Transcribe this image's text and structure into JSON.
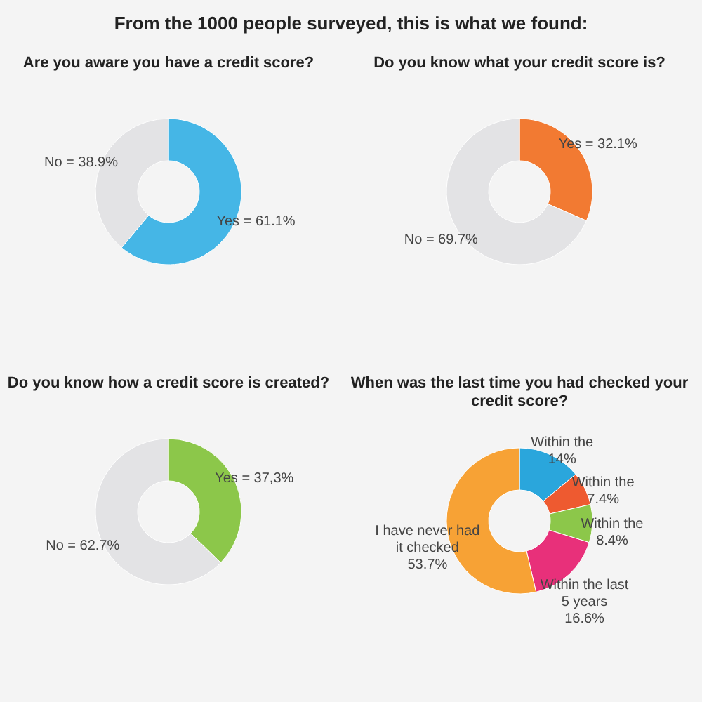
{
  "chart_data": [
    {
      "type": "donut",
      "title": "From the 1000 people surveyed, this is what we found:",
      "subtitle": "Are you aware you have a credit score?",
      "categories": [
        null,
        null
      ],
      "values": [
        61.1,
        38.9
      ],
      "value_labels": [
        "Yes = 61.1%",
        "No = 38.9%"
      ],
      "colors": [
        "#45b6e6",
        "#e3e3e5"
      ]
    },
    {
      "type": "donut",
      "title": "Do you know what your credit score is?",
      "categories": [
        null,
        null
      ],
      "values": [
        32.1,
        69.7
      ],
      "value_labels": [
        "Yes = 32.1%",
        "No = 69.7%"
      ],
      "colors": [
        "#f27a32",
        "#e3e3e5"
      ]
    },
    {
      "type": "donut",
      "title": "Do you know how a credit score is created?",
      "categories": [
        null,
        null
      ],
      "values": [
        37.3,
        62.7
      ],
      "value_labels": [
        "Yes = 37,3%",
        "No = 62.7%"
      ],
      "colors": [
        "#8cc74a",
        "#e3e3e5"
      ]
    },
    {
      "type": "donut",
      "title": "When was the last time you had checked your credit score?",
      "categories": [
        "Within the",
        "Within the",
        "Within the",
        "Within the last 5 years",
        "I have never had it checked"
      ],
      "values": [
        14,
        7.4,
        8.4,
        16.6,
        53.7
      ],
      "value_labels": [
        "14%",
        "7.4%",
        "8.4%",
        "16.6%",
        "53.7%"
      ],
      "colors": [
        "#2aa6dc",
        "#ee5a30",
        "#8cc74a",
        "#e8307a",
        "#f7a235"
      ]
    }
  ]
}
